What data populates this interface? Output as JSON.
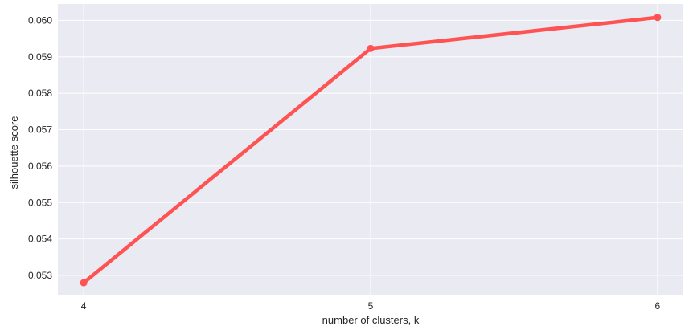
{
  "chart_data": {
    "type": "line",
    "title": "",
    "xlabel": "number of clusters, k",
    "ylabel": "silhouette score",
    "x": [
      4,
      5,
      6
    ],
    "x_tick_labels": [
      "4",
      "5",
      "6"
    ],
    "series": [
      {
        "values": [
          0.0528,
          0.05923,
          0.06008
        ],
        "color": "#ff5252"
      }
    ],
    "y_ticks": [
      0.053,
      0.054,
      0.055,
      0.056,
      0.057,
      0.058,
      0.059,
      0.06
    ],
    "y_tick_labels": [
      "0.053",
      "0.054",
      "0.055",
      "0.056",
      "0.057",
      "0.058",
      "0.059",
      "0.060"
    ],
    "ylim": [
      0.05245,
      0.06045
    ],
    "xlim": [
      3.91,
      6.09
    ],
    "grid": true,
    "style": {
      "plot_background": "#eaeaf2",
      "grid_color": "#ffffff",
      "text_color": "#262626"
    }
  }
}
